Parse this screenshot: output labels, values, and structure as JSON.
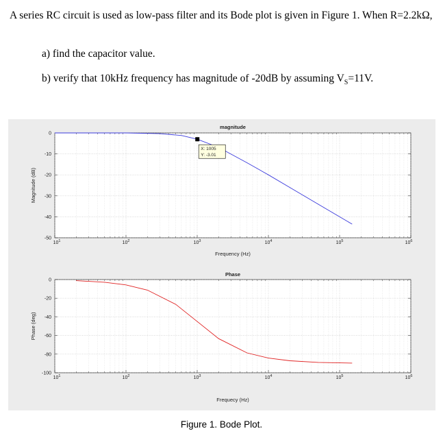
{
  "problem": {
    "intro": "A series RC circuit is used as low-pass filter and its Bode plot is given in Figure 1. When R=2.2kΩ,",
    "part_a": "a) find  the capacitor value.",
    "part_b_prefix": "b) verify that 10kHz frequency has magnitude of -20dB by assuming V",
    "part_b_sub": "S",
    "part_b_suffix": "=11V."
  },
  "figure": {
    "caption": "Figure 1. Bode Plot."
  },
  "chart_data": [
    {
      "type": "line",
      "title": "magnitude",
      "xlabel": "Frequency (Hz)",
      "ylabel": "Magnitude (dB)",
      "xscale": "log",
      "xlim": [
        10,
        1000000
      ],
      "ylim": [
        -50,
        0
      ],
      "xticks": [
        10,
        100,
        1000,
        10000,
        100000,
        1000000
      ],
      "xtick_labels": [
        "10^1",
        "10^2",
        "10^3",
        "10^4",
        "10^5",
        "10^6"
      ],
      "yticks": [
        0,
        -10,
        -20,
        -30,
        -40,
        -50
      ],
      "ytick_labels": [
        "0",
        "-10",
        "-20",
        "-30",
        "-40",
        "-50"
      ],
      "grid": true,
      "series": [
        {
          "color": "#3a3adc",
          "x": [
            10,
            100,
            300,
            600,
            1005,
            2000,
            5000,
            10000,
            20000,
            50000,
            100000,
            150000
          ],
          "y": [
            0,
            0,
            -0.37,
            -1.2,
            -3.01,
            -6.9,
            -14.2,
            -20.0,
            -26.0,
            -34.0,
            -40.0,
            -43.5
          ]
        }
      ],
      "datatip": {
        "x_label": "X: 1005",
        "y_label": "Y: -3.01",
        "x": 1005,
        "y": -3.01
      }
    },
    {
      "type": "line",
      "title": "Phase",
      "xlabel": "Frequecy (Hz)",
      "ylabel": "Phase (deg)",
      "xscale": "log",
      "xlim": [
        10,
        1000000
      ],
      "ylim": [
        -100,
        0
      ],
      "xticks": [
        10,
        100,
        1000,
        10000,
        100000,
        1000000
      ],
      "xtick_labels": [
        "10^1",
        "10^2",
        "10^3",
        "10^4",
        "10^5",
        "10^6"
      ],
      "yticks": [
        0,
        -20,
        -40,
        -60,
        -80,
        -100
      ],
      "ytick_labels": [
        "0",
        "-20",
        "-40",
        "-60",
        "-80",
        "-100"
      ],
      "grid": true,
      "series": [
        {
          "color": "#e02020",
          "x": [
            20,
            50,
            100,
            200,
            500,
            1000,
            2000,
            5000,
            10000,
            20000,
            50000,
            100000,
            150000
          ],
          "y": [
            -1.2,
            -2.9,
            -5.7,
            -11.3,
            -26.6,
            -45.0,
            -63.4,
            -78.7,
            -84.3,
            -87.1,
            -88.9,
            -89.4,
            -89.6
          ]
        }
      ]
    }
  ]
}
